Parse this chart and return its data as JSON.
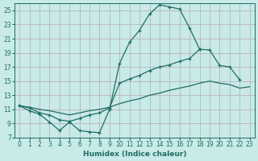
{
  "background_color": "#c8eae8",
  "grid_color": "#b8a8b8",
  "line_color": "#1e6e62",
  "xlabel": "Humidex (Indice chaleur)",
  "xlim": [
    -0.5,
    23.5
  ],
  "ylim": [
    7,
    26
  ],
  "yticks": [
    7,
    9,
    11,
    13,
    15,
    17,
    19,
    21,
    23,
    25
  ],
  "xticks": [
    0,
    1,
    2,
    3,
    4,
    5,
    6,
    7,
    8,
    9,
    10,
    11,
    12,
    13,
    14,
    15,
    16,
    17,
    18,
    19,
    20,
    21,
    22,
    23
  ],
  "line1_x": [
    0,
    1,
    2,
    3,
    4,
    5,
    6,
    7,
    8,
    9,
    10,
    11,
    12,
    13,
    14,
    15,
    16,
    17,
    18
  ],
  "line1_y": [
    11.5,
    10.8,
    10.3,
    9.2,
    8.0,
    9.2,
    8.0,
    7.8,
    7.7,
    11.0,
    17.5,
    20.5,
    22.2,
    24.5,
    25.8,
    25.5,
    25.2,
    22.5,
    19.5
  ],
  "line2_x": [
    0,
    1,
    2,
    3,
    4,
    5,
    6,
    7,
    8,
    9,
    10,
    11,
    12,
    13,
    14,
    15,
    16,
    17,
    18,
    19,
    20,
    21,
    22
  ],
  "line2_y": [
    11.5,
    11.2,
    10.5,
    10.2,
    9.5,
    9.3,
    9.7,
    10.2,
    10.5,
    11.2,
    14.7,
    15.3,
    15.8,
    16.5,
    17.0,
    17.3,
    17.8,
    18.2,
    19.5,
    19.4,
    17.2,
    17.0,
    15.2
  ],
  "line3_x": [
    0,
    1,
    2,
    3,
    4,
    5,
    6,
    7,
    8,
    9,
    10,
    11,
    12,
    13,
    14,
    15,
    16,
    17,
    18,
    19,
    20,
    21,
    22,
    23
  ],
  "line3_y": [
    11.5,
    11.3,
    11.0,
    10.8,
    10.5,
    10.2,
    10.5,
    10.8,
    11.0,
    11.3,
    11.8,
    12.2,
    12.5,
    13.0,
    13.3,
    13.7,
    14.0,
    14.3,
    14.7,
    15.0,
    14.7,
    14.5,
    14.0,
    14.2
  ]
}
